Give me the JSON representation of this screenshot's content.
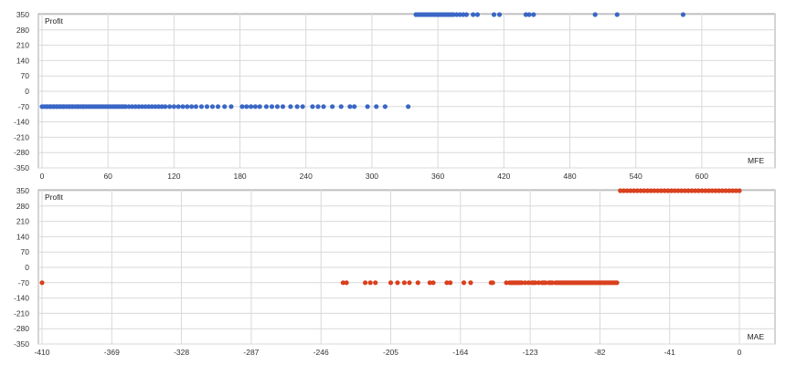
{
  "chart_data": [
    {
      "type": "scatter",
      "ylabel": "Profit",
      "xlabel": "MFE",
      "xlim": [
        0,
        640
      ],
      "ylim": [
        -350,
        350
      ],
      "xticks": [
        0,
        60,
        120,
        180,
        240,
        300,
        360,
        420,
        480,
        540,
        600
      ],
      "yticks": [
        350,
        280,
        210,
        140,
        70,
        0,
        -70,
        -140,
        -210,
        -280,
        -350
      ],
      "grid": true,
      "color": "#3a67c6",
      "series": [
        {
          "points": [
            [
              0,
              -70
            ],
            [
              2,
              -70
            ],
            [
              4,
              -70
            ],
            [
              5,
              -70
            ],
            [
              7,
              -70
            ],
            [
              8,
              -70
            ],
            [
              10,
              -70
            ],
            [
              11,
              -70
            ],
            [
              13,
              -70
            ],
            [
              14,
              -70
            ],
            [
              16,
              -70
            ],
            [
              17,
              -70
            ],
            [
              19,
              -70
            ],
            [
              20,
              -70
            ],
            [
              22,
              -70
            ],
            [
              24,
              -70
            ],
            [
              25,
              -70
            ],
            [
              27,
              -70
            ],
            [
              28,
              -70
            ],
            [
              30,
              -70
            ],
            [
              32,
              -70
            ],
            [
              33,
              -70
            ],
            [
              35,
              -70
            ],
            [
              37,
              -70
            ],
            [
              38,
              -70
            ],
            [
              40,
              -70
            ],
            [
              42,
              -70
            ],
            [
              44,
              -70
            ],
            [
              46,
              -70
            ],
            [
              48,
              -70
            ],
            [
              50,
              -70
            ],
            [
              52,
              -70
            ],
            [
              54,
              -70
            ],
            [
              56,
              -70
            ],
            [
              58,
              -70
            ],
            [
              60,
              -70
            ],
            [
              62,
              -70
            ],
            [
              64,
              -70
            ],
            [
              66,
              -70
            ],
            [
              68,
              -70
            ],
            [
              70,
              -70
            ],
            [
              72,
              -70
            ],
            [
              74,
              -70
            ],
            [
              76,
              -70
            ],
            [
              79,
              -70
            ],
            [
              82,
              -70
            ],
            [
              85,
              -70
            ],
            [
              88,
              -70
            ],
            [
              91,
              -70
            ],
            [
              94,
              -70
            ],
            [
              97,
              -70
            ],
            [
              100,
              -70
            ],
            [
              103,
              -70
            ],
            [
              106,
              -70
            ],
            [
              109,
              -70
            ],
            [
              112,
              -70
            ],
            [
              116,
              -70
            ],
            [
              120,
              -70
            ],
            [
              124,
              -70
            ],
            [
              128,
              -70
            ],
            [
              132,
              -70
            ],
            [
              136,
              -70
            ],
            [
              140,
              -70
            ],
            [
              145,
              -70
            ],
            [
              150,
              -70
            ],
            [
              155,
              -70
            ],
            [
              160,
              -70
            ],
            [
              166,
              -70
            ],
            [
              172,
              -70
            ],
            [
              182,
              -70
            ],
            [
              186,
              -70
            ],
            [
              190,
              -70
            ],
            [
              194,
              -70
            ],
            [
              198,
              -70
            ],
            [
              204,
              -70
            ],
            [
              209,
              -70
            ],
            [
              214,
              -70
            ],
            [
              219,
              -70
            ],
            [
              226,
              -70
            ],
            [
              232,
              -70
            ],
            [
              237,
              -70
            ],
            [
              246,
              -70
            ],
            [
              251,
              -70
            ],
            [
              256,
              -70
            ],
            [
              264,
              -70
            ],
            [
              272,
              -70
            ],
            [
              280,
              -70
            ],
            [
              284,
              -70
            ],
            [
              296,
              -70
            ],
            [
              304,
              -70
            ],
            [
              312,
              -70
            ],
            [
              333,
              -70
            ],
            [
              340,
              350
            ],
            [
              342,
              350
            ],
            [
              344,
              350
            ],
            [
              346,
              350
            ],
            [
              348,
              350
            ],
            [
              350,
              350
            ],
            [
              352,
              350
            ],
            [
              354,
              350
            ],
            [
              356,
              350
            ],
            [
              358,
              350
            ],
            [
              360,
              350
            ],
            [
              362,
              350
            ],
            [
              364,
              350
            ],
            [
              366,
              350
            ],
            [
              368,
              350
            ],
            [
              370,
              350
            ],
            [
              372,
              350
            ],
            [
              374,
              350
            ],
            [
              377,
              350
            ],
            [
              380,
              350
            ],
            [
              383,
              350
            ],
            [
              386,
              350
            ],
            [
              392,
              350
            ],
            [
              396,
              350
            ],
            [
              411,
              350
            ],
            [
              416,
              350
            ],
            [
              440,
              350
            ],
            [
              443,
              350
            ],
            [
              447,
              350
            ],
            [
              503,
              350
            ],
            [
              523,
              350
            ],
            [
              583,
              350
            ]
          ]
        }
      ]
    },
    {
      "type": "scatter",
      "ylabel": "Profit",
      "xlabel": "MAE",
      "xlim": [
        -410,
        0
      ],
      "ylim": [
        -350,
        350
      ],
      "xticks": [
        -410,
        -369,
        -328,
        -287,
        -246,
        -205,
        -164,
        -123,
        -82,
        -41,
        0
      ],
      "yticks": [
        350,
        280,
        210,
        140,
        70,
        0,
        -70,
        -140,
        -210,
        -280,
        -350
      ],
      "grid": true,
      "color": "#d9401e",
      "series": [
        {
          "points": [
            [
              -410,
              -70
            ],
            [
              -233,
              -70
            ],
            [
              -231,
              -70
            ],
            [
              -220,
              -70
            ],
            [
              -217,
              -70
            ],
            [
              -214,
              -70
            ],
            [
              -205,
              -70
            ],
            [
              -201,
              -70
            ],
            [
              -197,
              -70
            ],
            [
              -194,
              -70
            ],
            [
              -189,
              -70
            ],
            [
              -182,
              -70
            ],
            [
              -180,
              -70
            ],
            [
              -172,
              -70
            ],
            [
              -170,
              -70
            ],
            [
              -162,
              -70
            ],
            [
              -158,
              -70
            ],
            [
              -146,
              -70
            ],
            [
              -145,
              -70
            ],
            [
              -137,
              -70
            ],
            [
              -135,
              -70
            ],
            [
              -134,
              -70
            ],
            [
              -133,
              -70
            ],
            [
              -132,
              -70
            ],
            [
              -131,
              -70
            ],
            [
              -130,
              -70
            ],
            [
              -129,
              -70
            ],
            [
              -128,
              -70
            ],
            [
              -126,
              -70
            ],
            [
              -124,
              -70
            ],
            [
              -122,
              -70
            ],
            [
              -121,
              -70
            ],
            [
              -120,
              -70
            ],
            [
              -118,
              -70
            ],
            [
              -116,
              -70
            ],
            [
              -115,
              -70
            ],
            [
              -114,
              -70
            ],
            [
              -112,
              -70
            ],
            [
              -111,
              -70
            ],
            [
              -110,
              -70
            ],
            [
              -108,
              -70
            ],
            [
              -107,
              -70
            ],
            [
              -106,
              -70
            ],
            [
              -105,
              -70
            ],
            [
              -104,
              -70
            ],
            [
              -103,
              -70
            ],
            [
              -102,
              -70
            ],
            [
              -101,
              -70
            ],
            [
              -100,
              -70
            ],
            [
              -99,
              -70
            ],
            [
              -98,
              -70
            ],
            [
              -97,
              -70
            ],
            [
              -96,
              -70
            ],
            [
              -95,
              -70
            ],
            [
              -94,
              -70
            ],
            [
              -93,
              -70
            ],
            [
              -92,
              -70
            ],
            [
              -91,
              -70
            ],
            [
              -90,
              -70
            ],
            [
              -89,
              -70
            ],
            [
              -88,
              -70
            ],
            [
              -87,
              -70
            ],
            [
              -86,
              -70
            ],
            [
              -85,
              -70
            ],
            [
              -84,
              -70
            ],
            [
              -83,
              -70
            ],
            [
              -82,
              -70
            ],
            [
              -81,
              -70
            ],
            [
              -80,
              -70
            ],
            [
              -79,
              -70
            ],
            [
              -78,
              -70
            ],
            [
              -77,
              -70
            ],
            [
              -76,
              -70
            ],
            [
              -75,
              -70
            ],
            [
              -74,
              -70
            ],
            [
              -73,
              -70
            ],
            [
              -72,
              -70
            ],
            [
              -70,
              350
            ],
            [
              -68,
              350
            ],
            [
              -66,
              350
            ],
            [
              -64,
              350
            ],
            [
              -62,
              350
            ],
            [
              -60,
              350
            ],
            [
              -58,
              350
            ],
            [
              -56,
              350
            ],
            [
              -54,
              350
            ],
            [
              -52,
              350
            ],
            [
              -50,
              350
            ],
            [
              -48,
              350
            ],
            [
              -46,
              350
            ],
            [
              -44,
              350
            ],
            [
              -42,
              350
            ],
            [
              -40,
              350
            ],
            [
              -38,
              350
            ],
            [
              -36,
              350
            ],
            [
              -34,
              350
            ],
            [
              -32,
              350
            ],
            [
              -30,
              350
            ],
            [
              -28,
              350
            ],
            [
              -26,
              350
            ],
            [
              -24,
              350
            ],
            [
              -22,
              350
            ],
            [
              -20,
              350
            ],
            [
              -18,
              350
            ],
            [
              -16,
              350
            ],
            [
              -14,
              350
            ],
            [
              -12,
              350
            ],
            [
              -10,
              350
            ],
            [
              -8,
              350
            ],
            [
              -6,
              350
            ],
            [
              -4,
              350
            ],
            [
              -2,
              350
            ],
            [
              0,
              350
            ]
          ]
        }
      ]
    }
  ]
}
